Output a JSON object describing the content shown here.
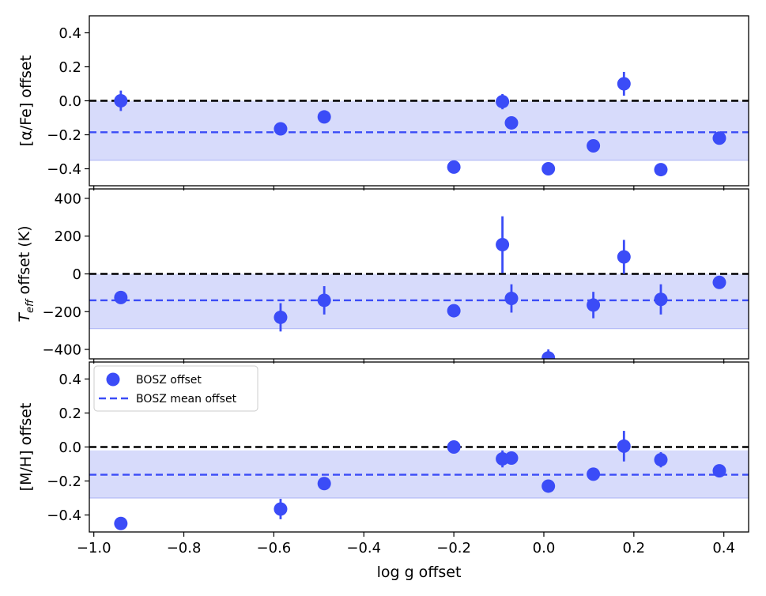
{
  "chart_data": [
    {
      "type": "scatter",
      "panel": "top",
      "ylabel": "[α/Fe] offset",
      "ylim": [
        -0.5,
        0.5
      ],
      "yticks": [
        -0.4,
        -0.2,
        0.0,
        0.2,
        0.4
      ],
      "ytick_labels": [
        "−0.4",
        "−0.2",
        "0.0",
        "0.2",
        "0.4"
      ],
      "mean": -0.185,
      "band": [
        -0.35,
        0.0
      ],
      "zero_line": 0,
      "x": [
        -0.94,
        -0.585,
        -0.488,
        -0.2,
        -0.092,
        -0.072,
        0.01,
        0.11,
        0.178,
        0.26,
        0.39
      ],
      "y": [
        0.0,
        -0.165,
        -0.095,
        -0.39,
        -0.005,
        -0.13,
        -0.4,
        -0.265,
        0.1,
        -0.405,
        -0.22
      ],
      "yerr": [
        0.06,
        0.0,
        0.0,
        0.0,
        0.045,
        0.0,
        0.0,
        0.0,
        0.07,
        0.0,
        0.0
      ]
    },
    {
      "type": "scatter",
      "panel": "middle",
      "ylabel": "T_eff offset (K)",
      "ylim": [
        -450,
        450
      ],
      "yticks": [
        -400,
        -200,
        0,
        200,
        400
      ],
      "ytick_labels": [
        "−400",
        "−200",
        "0",
        "200",
        "400"
      ],
      "mean": -140,
      "band": [
        -290,
        0
      ],
      "zero_line": 0,
      "x": [
        -0.94,
        -0.585,
        -0.488,
        -0.2,
        -0.092,
        -0.072,
        0.01,
        0.11,
        0.178,
        0.26,
        0.39
      ],
      "y": [
        -125,
        -230,
        -140,
        -195,
        155,
        -130,
        -445,
        -165,
        90,
        -135,
        -45
      ],
      "yerr": [
        0,
        75,
        75,
        0,
        150,
        75,
        45,
        70,
        90,
        80,
        0
      ]
    },
    {
      "type": "scatter",
      "panel": "bottom",
      "ylabel": "[M/H] offset",
      "xlabel": "log g offset",
      "ylim": [
        -0.5,
        0.5
      ],
      "xlim": [
        -1.01,
        0.455
      ],
      "yticks": [
        -0.4,
        -0.2,
        0.0,
        0.2,
        0.4
      ],
      "ytick_labels": [
        "−0.4",
        "−0.2",
        "0.0",
        "0.2",
        "0.4"
      ],
      "xticks": [
        -1.0,
        -0.8,
        -0.6,
        -0.4,
        -0.2,
        0.0,
        0.2,
        0.4
      ],
      "xtick_labels": [
        "−1.0",
        "−0.8",
        "−0.6",
        "−0.4",
        "−0.2",
        "0.0",
        "0.2",
        "0.4"
      ],
      "mean": -0.163,
      "band": [
        -0.3,
        -0.02
      ],
      "zero_line": 0,
      "x": [
        -0.94,
        -0.585,
        -0.488,
        -0.2,
        -0.092,
        -0.072,
        0.01,
        0.11,
        0.178,
        0.26,
        0.39
      ],
      "y": [
        -0.45,
        -0.365,
        -0.215,
        0.0,
        -0.07,
        -0.065,
        -0.23,
        -0.16,
        0.005,
        -0.075,
        -0.14
      ],
      "yerr": [
        0.03,
        0.06,
        0.0,
        0.0,
        0.05,
        0.0,
        0.0,
        0.0,
        0.09,
        0.045,
        0.0
      ],
      "legend": {
        "location": "upper-left",
        "entries": [
          {
            "label": "BOSZ offset",
            "marker": "circle"
          },
          {
            "label": "BOSZ mean offset",
            "marker": "dashed-line"
          }
        ]
      }
    }
  ],
  "colors": {
    "points": "#3b4cf7",
    "band": "#d7dbfb",
    "band_edge": "#a9b1f6",
    "zero_line": "#000000",
    "axes": "#000000"
  }
}
